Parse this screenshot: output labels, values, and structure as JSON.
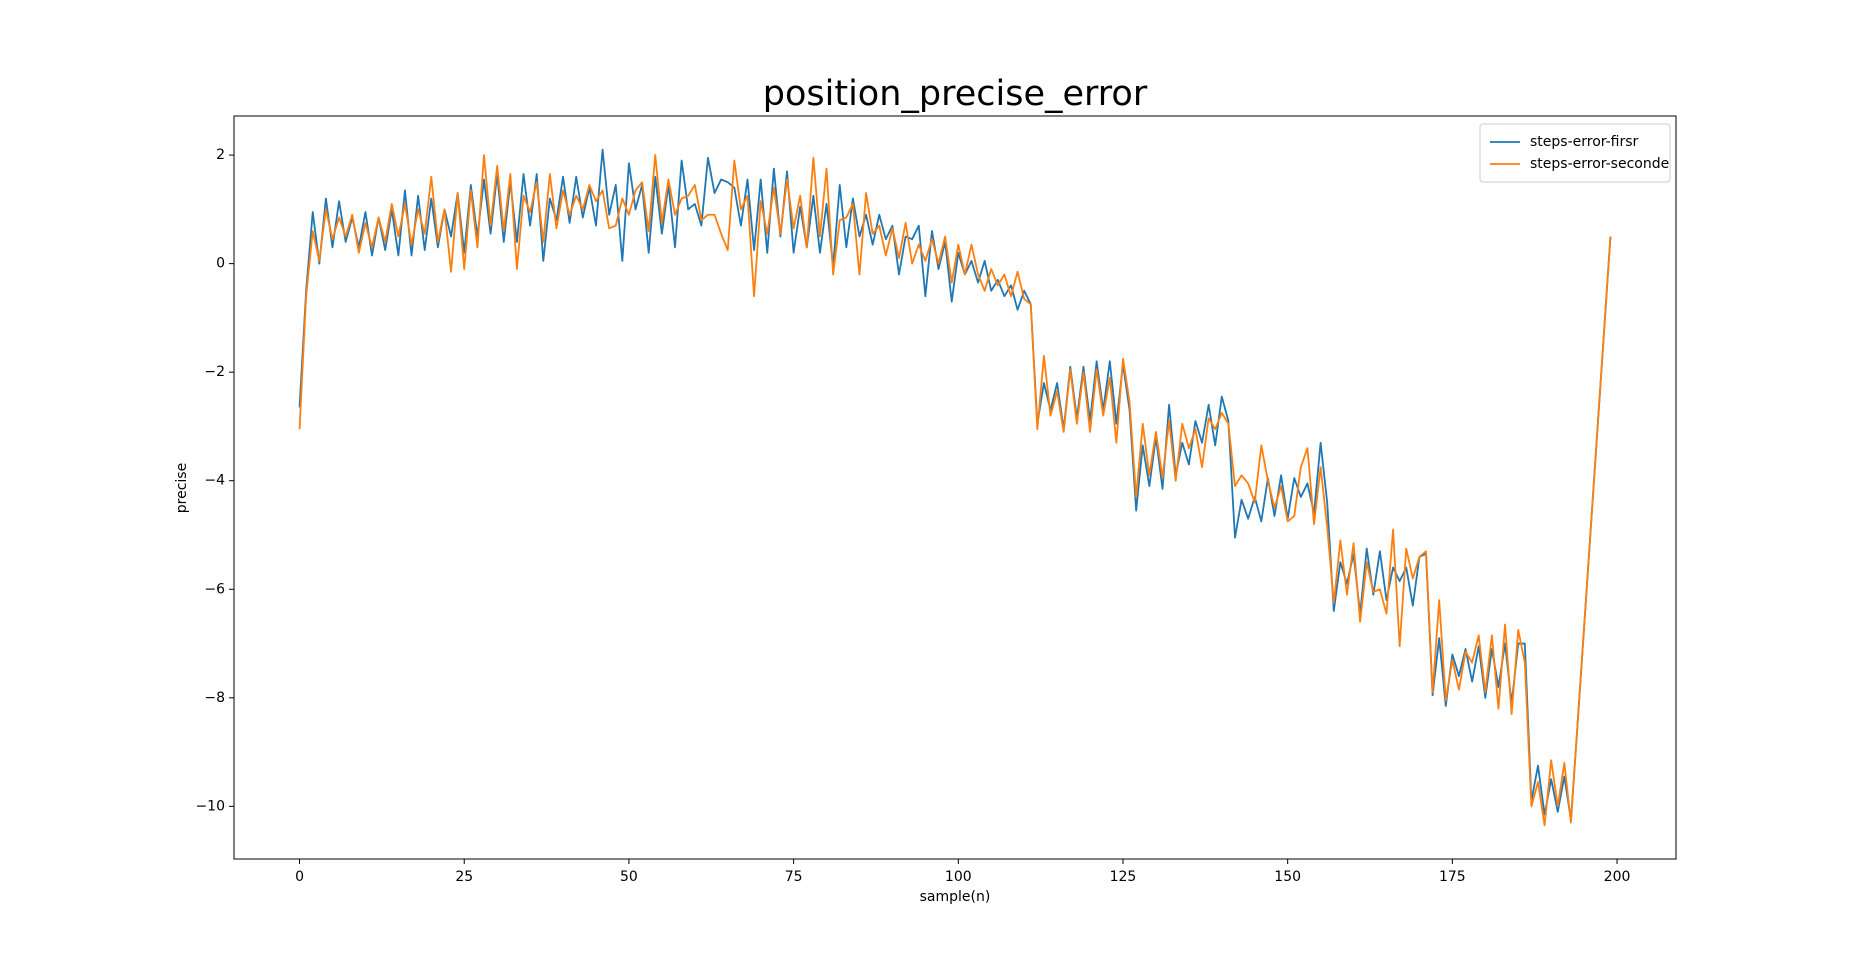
{
  "chart_data": {
    "type": "line",
    "title": "position_precise_error",
    "xlabel": "sample(n)",
    "ylabel": "precise",
    "x": [
      0,
      1,
      2,
      3,
      4,
      5,
      6,
      7,
      8,
      9,
      10,
      11,
      12,
      13,
      14,
      15,
      16,
      17,
      18,
      19,
      20,
      21,
      22,
      23,
      24,
      25,
      26,
      27,
      28,
      29,
      30,
      31,
      32,
      33,
      34,
      35,
      36,
      37,
      38,
      39,
      40,
      41,
      42,
      43,
      44,
      45,
      46,
      47,
      48,
      49,
      50,
      51,
      52,
      53,
      54,
      55,
      56,
      57,
      58,
      59,
      60,
      61,
      62,
      63,
      64,
      65,
      66,
      67,
      68,
      69,
      70,
      71,
      72,
      73,
      74,
      75,
      76,
      77,
      78,
      79,
      80,
      81,
      82,
      83,
      84,
      85,
      86,
      87,
      88,
      89,
      90,
      91,
      92,
      93,
      94,
      95,
      96,
      97,
      98,
      99,
      100,
      101,
      102,
      103,
      104,
      105,
      106,
      107,
      108,
      109,
      110,
      111,
      112,
      113,
      114,
      115,
      116,
      117,
      118,
      119,
      120,
      121,
      122,
      123,
      124,
      125,
      126,
      127,
      128,
      129,
      130,
      131,
      132,
      133,
      134,
      135,
      136,
      137,
      138,
      139,
      140,
      141,
      142,
      143,
      144,
      145,
      146,
      147,
      148,
      149,
      150,
      151,
      152,
      153,
      154,
      155,
      156,
      157,
      158,
      159,
      160,
      161,
      162,
      163,
      164,
      165,
      166,
      167,
      168,
      169,
      170,
      171,
      172,
      173,
      174,
      175,
      176,
      177,
      178,
      179,
      180,
      181,
      182,
      183,
      184,
      185,
      186,
      187,
      188,
      189,
      190,
      191,
      192,
      193,
      194,
      195,
      196,
      197,
      198,
      199
    ],
    "series": [
      {
        "name": "steps-error-firsr",
        "color": "#1f77b4",
        "values": [
          -2.65,
          -0.5,
          0.95,
          0.0,
          1.2,
          0.3,
          1.15,
          0.4,
          0.85,
          0.3,
          0.95,
          0.15,
          0.85,
          0.25,
          1.0,
          0.15,
          1.35,
          0.15,
          1.25,
          0.25,
          1.2,
          0.3,
          1.0,
          0.5,
          1.3,
          0.2,
          1.45,
          0.5,
          1.55,
          0.55,
          1.65,
          0.4,
          1.5,
          0.4,
          1.65,
          0.7,
          1.65,
          0.05,
          1.2,
          0.8,
          1.6,
          0.75,
          1.6,
          0.85,
          1.4,
          0.7,
          2.1,
          0.9,
          1.45,
          0.05,
          1.85,
          1.0,
          1.45,
          0.2,
          1.6,
          0.55,
          1.45,
          0.3,
          1.9,
          1.0,
          1.1,
          0.7,
          1.95,
          1.3,
          1.55,
          1.5,
          1.4,
          0.7,
          1.55,
          0.25,
          1.55,
          0.2,
          1.75,
          0.5,
          1.7,
          0.2,
          1.05,
          0.3,
          1.25,
          0.2,
          1.1,
          -0.05,
          1.45,
          0.3,
          1.2,
          0.5,
          0.9,
          0.35,
          0.9,
          0.45,
          0.7,
          -0.2,
          0.5,
          0.45,
          0.7,
          -0.6,
          0.6,
          -0.1,
          0.4,
          -0.7,
          0.2,
          -0.2,
          0.05,
          -0.35,
          0.05,
          -0.5,
          -0.3,
          -0.6,
          -0.4,
          -0.85,
          -0.5,
          -0.75,
          -2.95,
          -2.2,
          -2.7,
          -2.2,
          -3.05,
          -1.9,
          -2.85,
          -1.9,
          -2.9,
          -1.8,
          -2.7,
          -1.8,
          -2.95,
          -1.85,
          -2.7,
          -4.55,
          -3.35,
          -4.1,
          -3.2,
          -4.15,
          -2.6,
          -3.9,
          -3.3,
          -3.7,
          -2.9,
          -3.3,
          -2.6,
          -3.35,
          -2.45,
          -2.9,
          -5.05,
          -4.35,
          -4.7,
          -4.3,
          -4.75,
          -3.95,
          -4.65,
          -3.9,
          -4.7,
          -3.95,
          -4.3,
          -4.05,
          -4.6,
          -3.3,
          -4.4,
          -6.4,
          -5.5,
          -5.9,
          -5.35,
          -6.45,
          -5.25,
          -6.1,
          -5.3,
          -6.2,
          -5.6,
          -5.85,
          -5.6,
          -6.3,
          -5.4,
          -5.35,
          -7.95,
          -6.9,
          -8.15,
          -7.2,
          -7.6,
          -7.1,
          -7.7,
          -7.05,
          -8.0,
          -7.1,
          -7.8,
          -7.0,
          -8.1,
          -7.0,
          -7.0,
          -9.9,
          -9.25,
          -10.15,
          -9.5,
          -10.1,
          -9.45,
          -10.25,
          -8.5,
          -6.7,
          -4.9,
          -3.1,
          -1.3,
          0.5
        ]
      },
      {
        "name": "steps-error-seconde",
        "color": "#ff7f0e",
        "values": [
          -3.05,
          -0.6,
          0.6,
          0.05,
          1.0,
          0.45,
          0.85,
          0.5,
          0.9,
          0.2,
          0.75,
          0.3,
          0.85,
          0.4,
          1.1,
          0.5,
          1.1,
          0.35,
          1.0,
          0.55,
          1.6,
          0.4,
          1.0,
          -0.15,
          1.3,
          -0.1,
          1.35,
          0.3,
          2.0,
          0.7,
          1.8,
          0.6,
          1.65,
          -0.1,
          1.25,
          0.95,
          1.5,
          0.4,
          1.65,
          0.65,
          1.35,
          0.9,
          1.25,
          1.0,
          1.45,
          1.15,
          1.35,
          0.65,
          0.7,
          1.2,
          0.9,
          1.35,
          1.5,
          0.6,
          2.0,
          0.75,
          1.55,
          0.9,
          1.2,
          1.25,
          1.45,
          0.8,
          0.9,
          0.9,
          0.55,
          0.25,
          1.9,
          1.0,
          1.25,
          -0.6,
          1.15,
          0.55,
          1.4,
          0.55,
          1.55,
          0.65,
          1.25,
          0.3,
          1.95,
          0.5,
          1.75,
          -0.2,
          0.8,
          0.85,
          1.1,
          -0.2,
          1.3,
          0.55,
          0.7,
          0.15,
          0.65,
          0.1,
          0.75,
          0.0,
          0.35,
          0.05,
          0.45,
          0.0,
          0.5,
          -0.35,
          0.35,
          -0.2,
          0.35,
          -0.2,
          -0.5,
          -0.1,
          -0.4,
          -0.2,
          -0.6,
          -0.15,
          -0.65,
          -0.75,
          -3.05,
          -1.7,
          -2.8,
          -2.35,
          -3.1,
          -1.95,
          -2.95,
          -2.0,
          -3.1,
          -1.95,
          -2.8,
          -2.1,
          -3.3,
          -1.75,
          -2.55,
          -4.3,
          -2.95,
          -3.9,
          -3.1,
          -3.95,
          -2.9,
          -4.0,
          -2.95,
          -3.4,
          -3.05,
          -3.75,
          -2.85,
          -3.05,
          -2.75,
          -2.95,
          -4.1,
          -3.9,
          -4.05,
          -4.4,
          -3.35,
          -4.0,
          -4.5,
          -4.1,
          -4.75,
          -4.65,
          -3.75,
          -3.4,
          -4.8,
          -3.75,
          -4.85,
          -6.25,
          -5.1,
          -6.1,
          -5.15,
          -6.6,
          -5.5,
          -6.05,
          -6.0,
          -6.45,
          -4.9,
          -7.05,
          -5.25,
          -5.8,
          -5.4,
          -5.3,
          -7.9,
          -6.2,
          -8.05,
          -7.3,
          -7.85,
          -7.15,
          -7.35,
          -6.85,
          -7.9,
          -6.85,
          -8.2,
          -6.65,
          -8.3,
          -6.75,
          -7.35,
          -10.0,
          -9.55,
          -10.35,
          -9.15,
          -10.0,
          -9.2,
          -10.3,
          -8.5,
          -6.7,
          -4.9,
          -3.1,
          -1.3,
          0.5
        ]
      }
    ],
    "xlim": [
      -9.95,
      208.95
    ],
    "xticks": [
      0,
      25,
      50,
      75,
      100,
      125,
      150,
      175,
      200
    ],
    "ylim": [
      -10.97,
      2.72
    ],
    "yticks": [
      {
        "value": -10,
        "label": "−10"
      },
      {
        "value": -8,
        "label": "−8"
      },
      {
        "value": -6,
        "label": "−6"
      },
      {
        "value": -4,
        "label": "−4"
      },
      {
        "value": -2,
        "label": "−2"
      },
      0,
      2
    ],
    "grid": false,
    "legend": "upper right"
  }
}
